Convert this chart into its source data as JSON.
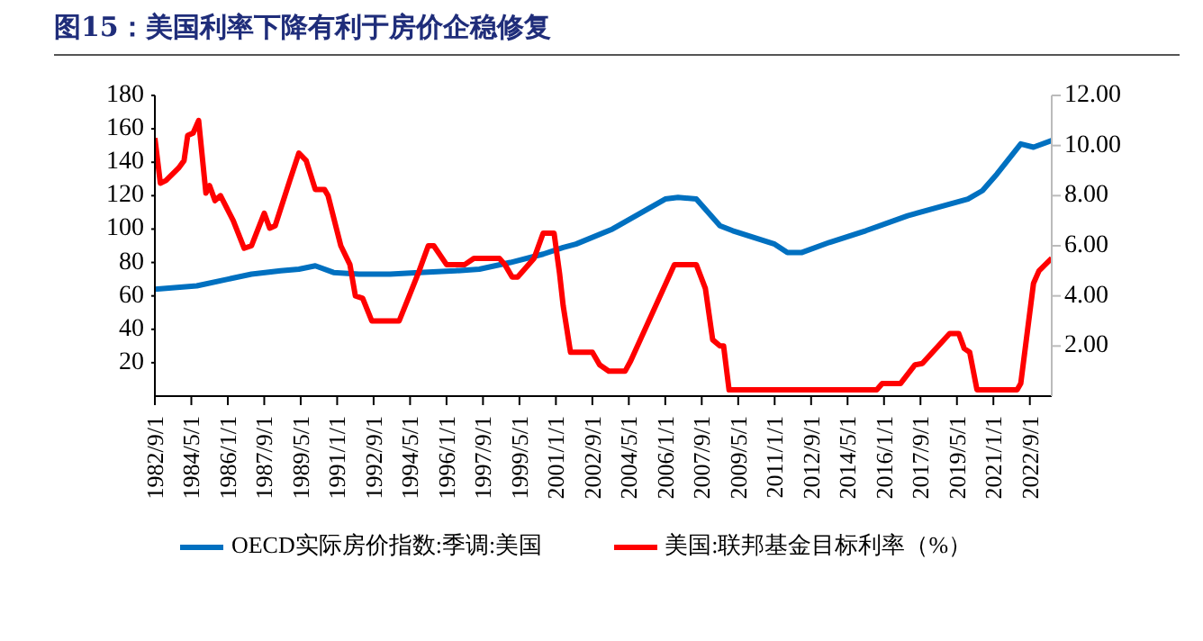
{
  "chart_data": {
    "type": "line",
    "title": "图15：美国利率下降有利于房价企稳修复",
    "xlim": [
      "1982-09",
      "2023-09"
    ],
    "xticks": [
      {
        "value": "1982-09",
        "label": "1982/9/1"
      },
      {
        "value": "1984-05",
        "label": "1984/5/1"
      },
      {
        "value": "1986-01",
        "label": "1986/1/1"
      },
      {
        "value": "1987-09",
        "label": "1987/9/1"
      },
      {
        "value": "1989-05",
        "label": "1989/5/1"
      },
      {
        "value": "1991-01",
        "label": "1991/1/1"
      },
      {
        "value": "1992-09",
        "label": "1992/9/1"
      },
      {
        "value": "1994-05",
        "label": "1994/5/1"
      },
      {
        "value": "1996-01",
        "label": "1996/1/1"
      },
      {
        "value": "1997-09",
        "label": "1997/9/1"
      },
      {
        "value": "1999-05",
        "label": "1999/5/1"
      },
      {
        "value": "2001-01",
        "label": "2001/1/1"
      },
      {
        "value": "2002-09",
        "label": "2002/9/1"
      },
      {
        "value": "2004-05",
        "label": "2004/5/1"
      },
      {
        "value": "2006-01",
        "label": "2006/1/1"
      },
      {
        "value": "2007-09",
        "label": "2007/9/1"
      },
      {
        "value": "2009-05",
        "label": "2009/5/1"
      },
      {
        "value": "2011-01",
        "label": "2011/1/1"
      },
      {
        "value": "2012-09",
        "label": "2012/9/1"
      },
      {
        "value": "2014-05",
        "label": "2014/5/1"
      },
      {
        "value": "2016-01",
        "label": "2016/1/1"
      },
      {
        "value": "2017-09",
        "label": "2017/9/1"
      },
      {
        "value": "2019-05",
        "label": "2019/5/1"
      },
      {
        "value": "2021-01",
        "label": "2021/1/1"
      },
      {
        "value": "2022-09",
        "label": "2022/9/1"
      }
    ],
    "ylim": [
      0,
      180
    ],
    "yticks": [
      20,
      40,
      60,
      80,
      100,
      120,
      140,
      160,
      180
    ],
    "y2lim": [
      0,
      12
    ],
    "y2ticks": [
      {
        "value": 2,
        "label": "2.00"
      },
      {
        "value": 4,
        "label": "4.00"
      },
      {
        "value": 6,
        "label": "6.00"
      },
      {
        "value": 8,
        "label": "8.00"
      },
      {
        "value": 10,
        "label": "10.00"
      },
      {
        "value": 12,
        "label": "12.00"
      }
    ],
    "grid": false,
    "legend": "bottom",
    "marker": "none",
    "line_style": "solid",
    "series": [
      {
        "name": "OECD实际房价指数:季调:美国",
        "color": "#0070c0",
        "x": [
          "1982-09",
          "1984-08",
          "1986-01",
          "1987-02",
          "1988-06",
          "1989-04",
          "1990-01",
          "1990-11",
          "1992-01",
          "1993-06",
          "1994-10",
          "1996-06",
          "1997-07",
          "1998-12",
          "2000-06",
          "2001-05",
          "2001-12",
          "2003-08",
          "2006-01",
          "2006-08",
          "2007-06",
          "2008-07",
          "2009-02",
          "2011-01",
          "2011-08",
          "2012-04",
          "2013-07",
          "2015-03",
          "2017-02",
          "2019-11",
          "2020-07",
          "2021-03",
          "2022-04",
          "2022-11",
          "2023-09"
        ],
        "values": [
          64,
          66,
          70,
          73,
          75,
          76,
          78,
          74,
          73,
          73,
          74,
          75,
          76,
          80,
          85,
          89,
          91,
          100,
          118,
          119,
          118,
          102,
          99,
          91,
          86,
          86,
          92,
          99,
          108,
          118,
          123,
          133,
          151,
          149,
          153
        ]
      },
      {
        "name": "美国:联邦基金目标利率（%）",
        "color": "#ff0000",
        "axis": "y2",
        "x": [
          "1982-09",
          "1982-12",
          "1983-03",
          "1983-10",
          "1984-01",
          "1984-03",
          "1984-06",
          "1984-09",
          "1985-01",
          "1985-03",
          "1985-06",
          "1985-09",
          "1986-04",
          "1986-10",
          "1987-02",
          "1987-09",
          "1987-12",
          "1988-03",
          "1988-11",
          "1989-04",
          "1989-08",
          "1990-01",
          "1990-06",
          "1990-08",
          "1991-03",
          "1991-08",
          "1991-11",
          "1992-03",
          "1992-08",
          "1993-11",
          "1994-04",
          "1994-10",
          "1995-03",
          "1995-06",
          "1996-01",
          "1996-11",
          "1997-04",
          "1998-06",
          "1998-09",
          "1999-01",
          "1999-04",
          "2000-01",
          "2000-06",
          "2000-12",
          "2001-03",
          "2001-05",
          "2001-09",
          "2002-09",
          "2003-01",
          "2003-06",
          "2004-03",
          "2004-06",
          "2006-06",
          "2007-06",
          "2007-11",
          "2008-03",
          "2008-07",
          "2008-09",
          "2008-12",
          "2015-09",
          "2015-12",
          "2016-10",
          "2017-06",
          "2017-10",
          "2019-01",
          "2019-06",
          "2019-09",
          "2019-12",
          "2020-04",
          "2022-02",
          "2022-04",
          "2022-11",
          "2023-02",
          "2023-09"
        ],
        "values": [
          10.3,
          8.5,
          8.6,
          9.1,
          9.4,
          10.4,
          10.5,
          11.0,
          8.1,
          8.4,
          7.8,
          8.0,
          7.0,
          5.9,
          6.0,
          7.3,
          6.7,
          6.8,
          8.6,
          9.7,
          9.4,
          8.25,
          8.25,
          8.0,
          6.0,
          5.25,
          4.0,
          3.9,
          3.0,
          3.0,
          3.9,
          5.0,
          6.0,
          6.0,
          5.25,
          5.25,
          5.5,
          5.5,
          5.25,
          4.75,
          4.75,
          5.5,
          6.5,
          6.5,
          4.9,
          3.6,
          1.75,
          1.75,
          1.25,
          1.0,
          1.0,
          1.4,
          5.25,
          5.25,
          4.3,
          2.25,
          2.0,
          2.0,
          0.25,
          0.25,
          0.5,
          0.5,
          1.25,
          1.3,
          2.5,
          2.5,
          1.9,
          1.75,
          0.25,
          0.25,
          0.5,
          4.5,
          5.0,
          5.5
        ]
      }
    ]
  }
}
